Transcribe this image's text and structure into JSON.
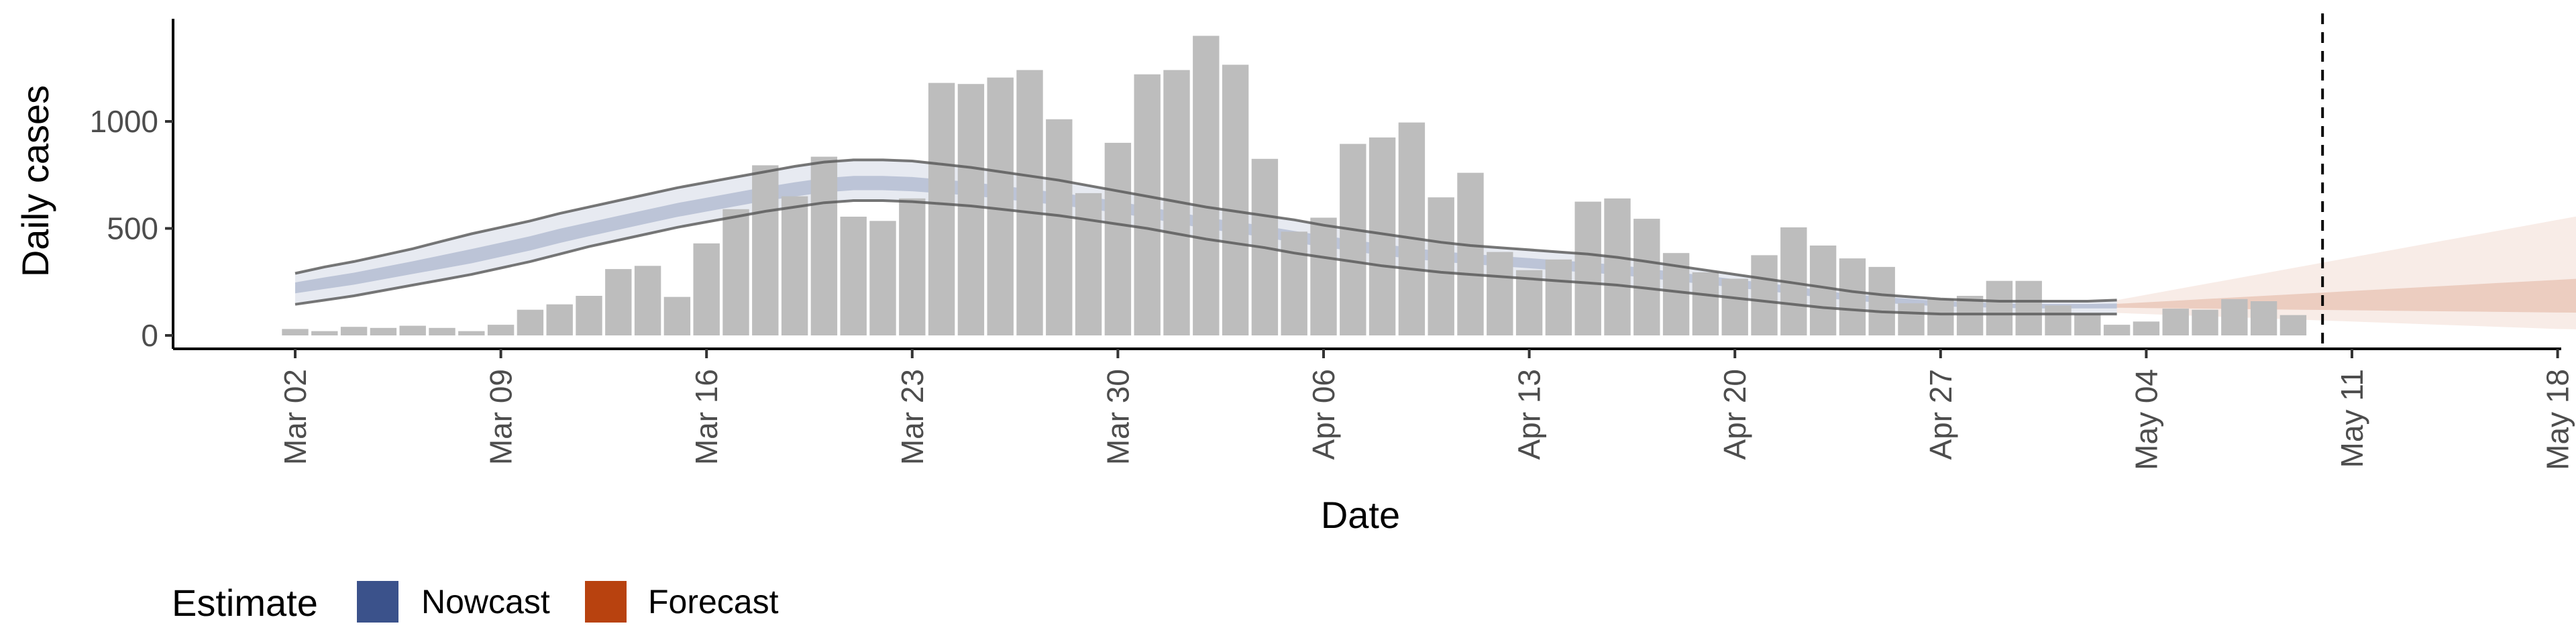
{
  "chart_data": {
    "type": "bar",
    "xlabel": "Date",
    "ylabel": "Daily cases",
    "ylim": [
      0,
      1450
    ],
    "x_tick_labels": [
      "Mar 02",
      "Mar 09",
      "Mar 16",
      "Mar 23",
      "Mar 30",
      "Apr 06",
      "Apr 13",
      "Apr 20",
      "Apr 27",
      "May 04",
      "May 11",
      "May 18"
    ],
    "y_ticks": [
      0,
      500,
      1000
    ],
    "start_date": "2020-03-02",
    "cases": [
      30,
      20,
      40,
      35,
      45,
      35,
      20,
      50,
      120,
      145,
      185,
      310,
      325,
      180,
      430,
      590,
      795,
      650,
      835,
      555,
      535,
      640,
      1180,
      1175,
      1205,
      1240,
      1010,
      665,
      900,
      1220,
      1240,
      1400,
      1265,
      825,
      485,
      550,
      895,
      925,
      995,
      645,
      760,
      390,
      305,
      355,
      625,
      640,
      545,
      385,
      295,
      265,
      375,
      505,
      420,
      360,
      320,
      150,
      170,
      185,
      255,
      255,
      140,
      100,
      50,
      65,
      125,
      120,
      170,
      160,
      95
    ],
    "nowcast": {
      "name": "Nowcast",
      "color": "#3B528B",
      "median": [
        225,
        245,
        265,
        290,
        315,
        340,
        365,
        395,
        425,
        460,
        490,
        520,
        550,
        580,
        605,
        630,
        655,
        675,
        695,
        705,
        705,
        700,
        690,
        680,
        665,
        650,
        635,
        620,
        600,
        575,
        550,
        525,
        505,
        485,
        460,
        440,
        420,
        400,
        385,
        370,
        360,
        350,
        340,
        330,
        320,
        310,
        295,
        280,
        265,
        250,
        235,
        220,
        200,
        185,
        175,
        165,
        155,
        150,
        145,
        140,
        140,
        140,
        140
      ],
      "upper90": [
        290,
        320,
        345,
        375,
        405,
        440,
        475,
        505,
        535,
        570,
        600,
        630,
        660,
        690,
        715,
        740,
        765,
        790,
        810,
        820,
        820,
        815,
        800,
        785,
        765,
        745,
        725,
        700,
        675,
        650,
        625,
        600,
        580,
        560,
        540,
        515,
        495,
        475,
        455,
        435,
        420,
        410,
        400,
        390,
        380,
        365,
        345,
        325,
        305,
        285,
        265,
        245,
        225,
        205,
        190,
        180,
        170,
        165,
        160,
        160,
        160,
        160,
        165
      ],
      "lower90": [
        145,
        165,
        185,
        210,
        235,
        260,
        285,
        315,
        345,
        380,
        415,
        445,
        475,
        505,
        530,
        555,
        580,
        600,
        620,
        630,
        630,
        625,
        615,
        605,
        590,
        575,
        560,
        540,
        520,
        500,
        475,
        450,
        430,
        410,
        385,
        365,
        345,
        325,
        310,
        295,
        285,
        275,
        265,
        255,
        245,
        235,
        220,
        205,
        190,
        175,
        160,
        145,
        130,
        120,
        110,
        105,
        100,
        100,
        100,
        100,
        100,
        100,
        100
      ]
    },
    "forecast": {
      "name": "Forecast",
      "color": "#B8420F",
      "start_index": 62,
      "median": [
        140,
        140,
        140,
        140,
        140,
        140,
        140,
        140,
        140,
        140,
        140,
        140,
        140,
        140,
        140,
        140,
        140,
        140,
        140,
        140
      ],
      "upper90": [
        165,
        190,
        215,
        240,
        265,
        290,
        315,
        340,
        365,
        390,
        415,
        440,
        465,
        490,
        515,
        540,
        565,
        590,
        610,
        630
      ],
      "lower90": [
        105,
        100,
        95,
        90,
        85,
        80,
        75,
        70,
        65,
        60,
        55,
        50,
        45,
        40,
        35,
        30,
        28,
        26,
        24,
        22
      ]
    },
    "vline_date": "May 10",
    "legend": {
      "title": "Estimate",
      "position": "bottom-left",
      "items": [
        "Nowcast",
        "Forecast"
      ]
    }
  }
}
